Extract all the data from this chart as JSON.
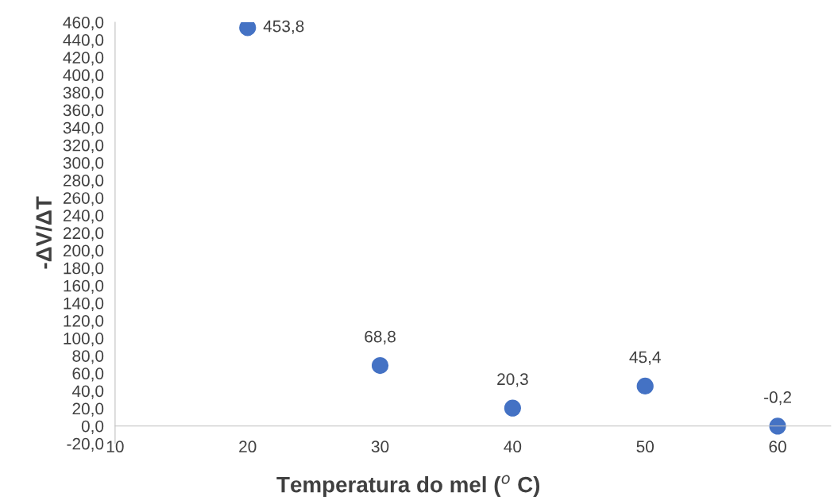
{
  "chart_data": {
    "type": "scatter",
    "xlabel": "Temperatura do mel ($^{o}$ C)",
    "ylabel": "-ΔV/ΔT",
    "x": [
      20,
      30,
      40,
      50,
      60
    ],
    "series": [
      {
        "color": "#4472c4",
        "values": [
          453.8,
          68.8,
          20.3,
          45.4,
          -0.2
        ],
        "value_labels": [
          "453,8",
          "68,8",
          "20,3",
          "45,4",
          "-0,2"
        ]
      }
    ],
    "xlim": [
      10,
      64
    ],
    "xticks": [
      10,
      20,
      30,
      40,
      50,
      60
    ],
    "ylim": [
      -20,
      460
    ],
    "yticks": [
      {
        "value": -20,
        "label": "-20,0"
      },
      {
        "value": 0,
        "label": "0,0"
      },
      {
        "value": 20,
        "label": "20,0"
      },
      {
        "value": 40,
        "label": "40,0"
      },
      {
        "value": 60,
        "label": "60,0"
      },
      {
        "value": 80,
        "label": "80,0"
      },
      {
        "value": 100,
        "label": "100,0"
      },
      {
        "value": 120,
        "label": "120,0"
      },
      {
        "value": 140,
        "label": "140,0"
      },
      {
        "value": 160,
        "label": "160,0"
      },
      {
        "value": 180,
        "label": "180,0"
      },
      {
        "value": 200,
        "label": "200,0"
      },
      {
        "value": 220,
        "label": "220,0"
      },
      {
        "value": 240,
        "label": "240,0"
      },
      {
        "value": 260,
        "label": "260,0"
      },
      {
        "value": 280,
        "label": "280,0"
      },
      {
        "value": 300,
        "label": "300,0"
      },
      {
        "value": 320,
        "label": "320,0"
      },
      {
        "value": 340,
        "label": "340,0"
      },
      {
        "value": 360,
        "label": "360,0"
      },
      {
        "value": 380,
        "label": "380,0"
      },
      {
        "value": 400,
        "label": "400,0"
      },
      {
        "value": 420,
        "label": "420,0"
      },
      {
        "value": 440,
        "label": "440,0"
      },
      {
        "value": 460,
        "label": "460,0"
      }
    ],
    "grid": false,
    "marker": "circle",
    "legend": false
  }
}
